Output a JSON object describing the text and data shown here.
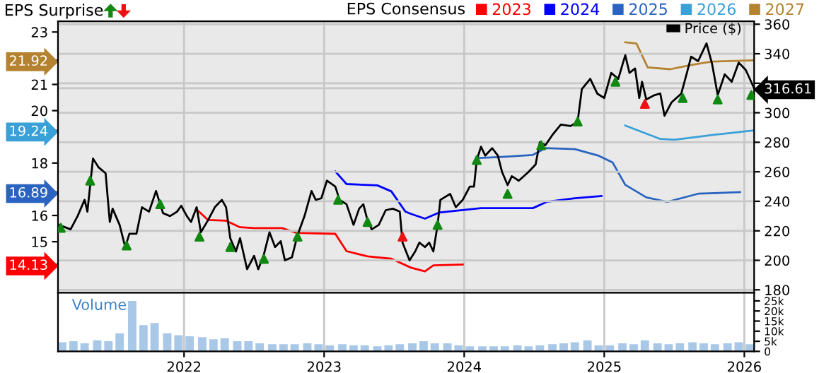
{
  "chart_data": [
    {
      "type": "line",
      "legend_title": "EPS Consensus",
      "annotations": [
        "EPS Surprise"
      ],
      "xlim": [
        2021.1,
        2026.07
      ],
      "xticks": [
        2022,
        2023,
        2024,
        2025,
        2026
      ],
      "ylim": [
        13.05,
        23.41
      ],
      "yticks": [
        {
          "value": 14.13,
          "label": "14.13"
        },
        15,
        16,
        {
          "value": 16.89,
          "label": "16.89"
        },
        18,
        {
          "value": 19.24,
          "label": "19.24"
        },
        20,
        21,
        {
          "value": 21.92,
          "label": "21.92"
        },
        23
      ],
      "y2lim": [
        178,
        362
      ],
      "y2ticks": [
        180,
        200,
        220,
        240,
        260,
        280,
        300,
        {
          "value": 316.61,
          "label": "316.61"
        },
        {
          "value": 320,
          "label": null
        },
        340,
        360
      ],
      "grid": true,
      "legend": "top",
      "tick_labels": "y",
      "series": [
        {
          "name": "Price ($)",
          "color": "#000000",
          "axis": "y2",
          "x": [
            2021.107,
            2021.19,
            2021.24,
            2021.29,
            2021.31,
            2021.35,
            2021.39,
            2021.44,
            2021.47,
            2021.49,
            2021.54,
            2021.58,
            2021.61,
            2021.66,
            2021.7,
            2021.75,
            2021.8,
            2021.85,
            2021.9,
            2021.95,
            2021.98,
            2022.02,
            2022.05,
            2022.09,
            2022.12,
            2022.17,
            2022.22,
            2022.27,
            2022.3,
            2022.33,
            2022.37,
            2022.4,
            2022.45,
            2022.5,
            2022.53,
            2022.57,
            2022.61,
            2022.65,
            2022.69,
            2022.72,
            2022.77,
            2022.81,
            2022.86,
            2022.91,
            2022.94,
            2022.98,
            2023.02,
            2023.08,
            2023.11,
            2023.16,
            2023.21,
            2023.25,
            2023.28,
            2023.31,
            2023.34,
            2023.39,
            2023.44,
            2023.49,
            2023.54,
            2023.56,
            2023.61,
            2023.65,
            2023.68,
            2023.72,
            2023.75,
            2023.78,
            2023.81,
            2023.83,
            2023.9,
            2023.94,
            2023.99,
            2024.04,
            2024.07,
            2024.09,
            2024.12,
            2024.15,
            2024.2,
            2024.24,
            2024.27,
            2024.31,
            2024.34,
            2024.39,
            2024.46,
            2024.51,
            2024.54,
            2024.58,
            2024.63,
            2024.69,
            2024.76,
            2024.81,
            2024.84,
            2024.9,
            2024.95,
            2025.0,
            2025.05,
            2025.1,
            2025.15,
            2025.18,
            2025.22,
            2025.25,
            2025.27,
            2025.3,
            2025.36,
            2025.4,
            2025.43,
            2025.48,
            2025.55,
            2025.59,
            2025.62,
            2025.67,
            2025.73,
            2025.77,
            2025.81,
            2025.86,
            2025.91,
            2025.96,
            2026.01,
            2026.07
          ],
          "values": [
            224,
            221,
            230,
            241,
            233,
            269,
            263,
            259,
            226,
            235,
            224,
            209,
            218,
            218,
            236,
            233,
            247,
            232,
            230,
            233,
            237,
            230,
            226,
            236,
            219,
            227,
            236,
            241,
            236,
            215,
            206,
            215,
            194,
            203,
            194,
            204,
            219,
            209,
            213,
            200,
            202,
            217,
            230,
            247,
            241,
            242,
            254,
            250,
            241,
            238,
            224,
            235,
            238,
            227,
            221,
            224,
            234,
            235,
            233,
            212,
            200,
            206,
            212,
            209,
            212,
            206,
            224,
            241,
            245,
            236,
            241,
            250,
            250,
            268,
            277,
            271,
            276,
            271,
            260,
            251,
            257,
            254,
            260,
            265,
            280,
            278,
            285,
            292,
            291,
            294,
            316,
            323,
            313,
            310,
            327,
            323,
            339,
            327,
            330,
            310,
            321,
            309,
            312,
            313,
            298,
            307,
            313,
            327,
            338,
            335,
            347,
            333,
            312,
            326,
            321,
            334,
            329,
            316.61
          ]
        },
        {
          "name": "2023",
          "color": "#ff0000",
          "x": [
            2022.09,
            2022.17,
            2022.3,
            2022.4,
            2022.5,
            2022.7,
            2022.8,
            2023.08,
            2023.16,
            2023.31,
            2023.48,
            2023.62,
            2023.72,
            2023.78,
            2023.99
          ],
          "values": [
            16.23,
            15.83,
            15.8,
            15.55,
            15.52,
            15.52,
            15.34,
            15.3,
            14.64,
            14.44,
            14.35,
            14.01,
            13.87,
            14.1,
            14.13
          ]
        },
        {
          "name": "2024",
          "color": "#0000ff",
          "x": [
            2023.08,
            2023.16,
            2023.38,
            2023.48,
            2023.58,
            2023.62,
            2023.72,
            2023.82,
            2024.12,
            2024.49,
            2024.59,
            2024.79,
            2024.98
          ],
          "values": [
            17.68,
            17.2,
            17.15,
            16.92,
            16.15,
            16.06,
            15.88,
            16.11,
            16.28,
            16.28,
            16.52,
            16.66,
            16.74
          ]
        },
        {
          "name": "2025",
          "color": "#2a64c0",
          "x": [
            2024.09,
            2024.29,
            2024.49,
            2024.58,
            2024.79,
            2024.96,
            2025.06,
            2025.15,
            2025.3,
            2025.45,
            2025.67,
            2025.97
          ],
          "values": [
            18.19,
            18.24,
            18.31,
            18.57,
            18.53,
            18.28,
            18.02,
            17.17,
            16.69,
            16.52,
            16.83,
            16.89
          ]
        },
        {
          "name": "2026",
          "color": "#3aa0d8",
          "x": [
            2025.15,
            2025.4,
            2025.5,
            2025.8,
            2026.06
          ],
          "values": [
            19.43,
            18.92,
            18.89,
            19.09,
            19.24
          ]
        },
        {
          "name": "2027",
          "color": "#b5832f",
          "x": [
            2025.15,
            2025.23,
            2025.31,
            2025.47,
            2025.63,
            2025.77,
            2026.06
          ],
          "values": [
            22.61,
            22.56,
            21.65,
            21.58,
            21.75,
            21.87,
            21.92
          ]
        },
        {
          "type": "scatter",
          "marker": "triangle",
          "color": "#118811",
          "axis": "y2",
          "x": [
            2021.12,
            2021.33,
            2021.59,
            2021.83,
            2022.11,
            2022.33,
            2022.57,
            2022.81,
            2023.1,
            2023.31,
            2023.81,
            2024.09,
            2024.31,
            2024.55,
            2024.81,
            2025.08,
            2025.56,
            2025.81,
            2026.05
          ],
          "values": [
            222,
            254,
            210,
            238,
            216,
            209,
            201,
            216,
            241,
            226,
            224,
            268,
            245,
            278,
            294,
            321,
            310,
            309,
            312
          ]
        },
        {
          "type": "scatter",
          "marker": "triangle",
          "color": "#ee1111",
          "axis": "y2",
          "x": [
            2023.56,
            2025.29
          ],
          "values": [
            216,
            306
          ]
        }
      ]
    },
    {
      "type": "bar",
      "title": "Volume",
      "xlim": [
        2021.1,
        2026.07
      ],
      "xticks": [
        2022,
        2023,
        2024,
        2025,
        2026
      ],
      "y2lim": [
        0,
        29000
      ],
      "y2ticks": [
        0,
        {
          "value": 5000,
          "label": "5k"
        },
        {
          "value": 10000,
          "label": "10k"
        },
        {
          "value": 15000,
          "label": "15k"
        },
        {
          "value": 20000,
          "label": "20k"
        },
        {
          "value": 25000,
          "label": "25k"
        }
      ],
      "grid": "x",
      "series": [
        {
          "color": "#a9c8e8",
          "axis": "y2",
          "x": [
            2021.13,
            2021.21,
            2021.29,
            2021.38,
            2021.46,
            2021.54,
            2021.63,
            2021.71,
            2021.79,
            2021.88,
            2021.96,
            2022.04,
            2022.13,
            2022.21,
            2022.29,
            2022.38,
            2022.46,
            2022.54,
            2022.63,
            2022.71,
            2022.79,
            2022.88,
            2022.96,
            2023.04,
            2023.13,
            2023.21,
            2023.29,
            2023.38,
            2023.46,
            2023.54,
            2023.63,
            2023.71,
            2023.79,
            2023.88,
            2023.96,
            2024.04,
            2024.13,
            2024.21,
            2024.29,
            2024.38,
            2024.46,
            2024.54,
            2024.63,
            2024.71,
            2024.79,
            2024.88,
            2024.96,
            2025.04,
            2025.13,
            2025.21,
            2025.29,
            2025.38,
            2025.46,
            2025.54,
            2025.63,
            2025.71,
            2025.79,
            2025.88,
            2025.96,
            2026.04
          ],
          "values": [
            4500,
            5000,
            4000,
            5500,
            5000,
            9000,
            25000,
            13000,
            14000,
            9000,
            8000,
            7500,
            7000,
            6000,
            6500,
            5000,
            5000,
            4000,
            3500,
            3500,
            3500,
            4000,
            3500,
            3000,
            3500,
            3000,
            3000,
            2500,
            3000,
            3500,
            4000,
            5000,
            4000,
            4000,
            3000,
            2500,
            2500,
            2500,
            2500,
            3000,
            2500,
            3000,
            3500,
            4000,
            4500,
            5500,
            3000,
            3000,
            4000,
            3500,
            5500,
            4000,
            3500,
            4000,
            4500,
            4000,
            3500,
            4000,
            4500,
            3500
          ]
        }
      ]
    }
  ]
}
